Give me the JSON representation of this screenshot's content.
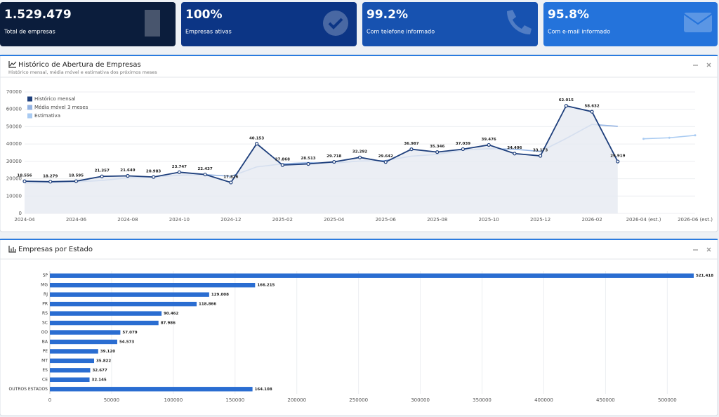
{
  "cards": [
    {
      "value": "1.529.479",
      "label": "Total de empresas",
      "color": "#0b1d3c"
    },
    {
      "value": "100%",
      "label": "Empresas ativas",
      "color": "#0c3585"
    },
    {
      "value": "99.2%",
      "label": "Com telefone informado",
      "color": "#1752b0"
    },
    {
      "value": "95.8%",
      "label": "Com e-mail informado",
      "color": "#2473db"
    }
  ],
  "chart_data": [
    {
      "type": "line",
      "title": "Histórico de Abertura de Empresas",
      "subtitle": "Histórico mensal, média móvel e estimativa dos próximos meses",
      "categories": [
        "2024-04",
        null,
        "2024-06",
        null,
        "2024-08",
        null,
        "2024-10",
        null,
        "2024-12",
        null,
        "2025-02",
        null,
        "2025-04",
        null,
        "2025-06",
        null,
        "2025-08",
        null,
        "2025-10",
        null,
        "2025-12",
        null,
        "2026-02",
        null,
        "2026-04 (est.)",
        null,
        "2026-06 (est.)"
      ],
      "series": [
        {
          "name": "Histórico mensal",
          "color": "#1e3f7c",
          "area": true,
          "values": [
            18556,
            18279,
            18595,
            21357,
            21649,
            20983,
            23747,
            22437,
            17826,
            40153,
            27868,
            28513,
            29718,
            32292,
            29642,
            36987,
            35346,
            37039,
            39476,
            34496,
            33173,
            62015,
            58632,
            29919,
            null,
            null,
            null
          ],
          "value_labels": [
            "18.556",
            "18.279",
            "18.595",
            "21.357",
            "21.649",
            "20.983",
            "23.747",
            "22.437",
            "17.826",
            "40.153",
            "27.868",
            "28.513",
            "29.718",
            "32.292",
            "29.642",
            "36.987",
            "35.346",
            "37.039",
            "39.476",
            "34.496",
            "33.173",
            "62.015",
            "58.632",
            "29.919",
            null,
            null,
            null
          ]
        },
        {
          "name": "Média móvel 3 meses",
          "color": "#93b3e3",
          "values": [
            17500,
            17700,
            18200,
            19000,
            20500,
            21000,
            22000,
            22400,
            21400,
            26800,
            28600,
            29200,
            29000,
            30200,
            30500,
            33000,
            34000,
            36500,
            37300,
            37000,
            35700,
            43200,
            51300,
            50200,
            null,
            null,
            null
          ]
        },
        {
          "name": "Estimativa",
          "color": "#a9cbf2",
          "values": [
            null,
            null,
            null,
            null,
            null,
            null,
            null,
            null,
            null,
            null,
            null,
            null,
            null,
            null,
            null,
            null,
            null,
            null,
            null,
            null,
            null,
            null,
            null,
            null,
            43000,
            43600,
            45000
          ]
        }
      ],
      "ylim": [
        0,
        70000
      ],
      "yticks": [
        0,
        10000,
        20000,
        30000,
        40000,
        50000,
        60000,
        70000
      ],
      "grid": true,
      "legend": "top-left"
    },
    {
      "type": "hbar",
      "title": "Empresas por Estado",
      "color": "#2a6dd1",
      "categories": [
        "SP",
        "MG",
        "RJ",
        "PR",
        "RS",
        "SC",
        "GO",
        "BA",
        "PE",
        "MT",
        "ES",
        "CE",
        "OUTROS ESTADOS"
      ],
      "values": [
        521418,
        166215,
        129008,
        118866,
        90462,
        87986,
        57079,
        54573,
        39120,
        35822,
        32677,
        32145,
        164108
      ],
      "value_labels": [
        "521.418",
        "166.215",
        "129.008",
        "118.866",
        "90.462",
        "87.986",
        "57.079",
        "54.573",
        "39.120",
        "35.822",
        "32.677",
        "32.145",
        "164.108"
      ],
      "xlim": [
        0,
        521418
      ],
      "xticks": [
        0,
        50000,
        100000,
        150000,
        200000,
        250000,
        300000,
        350000,
        400000,
        450000,
        500000
      ],
      "grid": true
    }
  ]
}
